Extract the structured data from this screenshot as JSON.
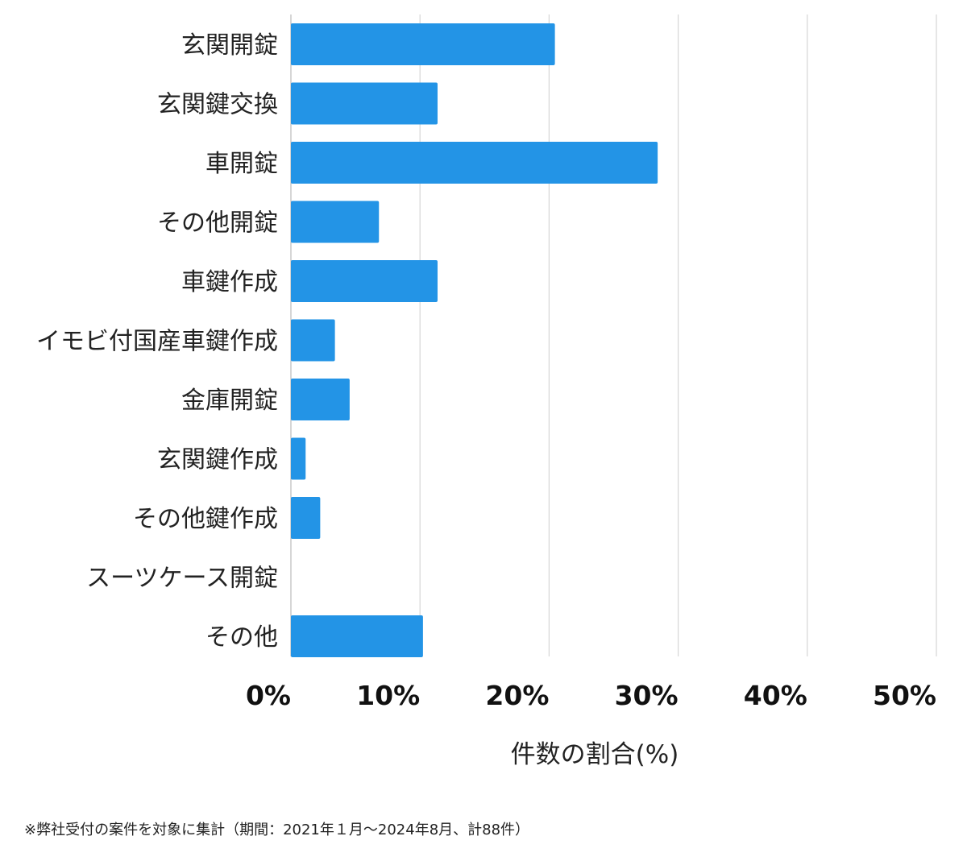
{
  "chart_data": {
    "type": "bar",
    "orientation": "horizontal",
    "categories": [
      "玄関開錠",
      "玄関鍵交換",
      "車開錠",
      "その他開錠",
      "車鍵作成",
      "イモビ付国産車鍵作成",
      "金庫開錠",
      "玄関鍵作成",
      "その他鍵作成",
      "スーツケース開錠",
      "その他"
    ],
    "values": [
      20.45,
      11.36,
      28.41,
      6.82,
      11.36,
      3.41,
      4.55,
      1.14,
      2.27,
      0,
      10.23
    ],
    "xlabel": "件数の割合(%)",
    "xlim": [
      0,
      50
    ],
    "xticks": [
      "0%",
      "10%",
      "20%",
      "30%",
      "40%",
      "50%"
    ],
    "grid": true,
    "bar_color": "#2394e6",
    "footnote": "※弊社受付の案件を対象に集計（期間：2021年１月〜2024年8月、計88件）"
  }
}
